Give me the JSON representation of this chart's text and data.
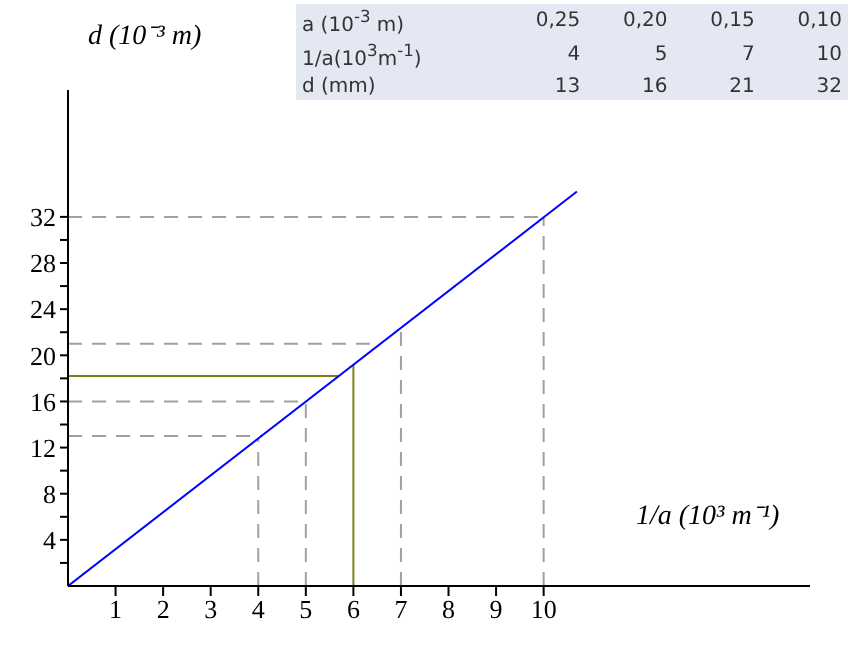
{
  "chart_data": {
    "type": "line",
    "xlabel": "1/a (10³ m⁻¹)",
    "ylabel": "d (10⁻³ m)",
    "x": [
      0,
      10.7
    ],
    "series": [
      {
        "color": "#0000ff",
        "values": [
          0,
          34.2
        ]
      }
    ],
    "xlim": [
      0,
      15.6
    ],
    "ylim": [
      0,
      43
    ],
    "xticks": [
      1,
      2,
      3,
      4,
      5,
      6,
      7,
      8,
      9,
      10
    ],
    "yticks": [
      {
        "value": 2,
        "label": null
      },
      4,
      {
        "value": 6,
        "label": null
      },
      8,
      {
        "value": 10,
        "label": null
      },
      12,
      {
        "value": 14,
        "label": null
      },
      16,
      {
        "value": 18,
        "label": null
      },
      20,
      {
        "value": 22,
        "label": null
      },
      24,
      {
        "value": 26,
        "label": null
      },
      28,
      {
        "value": 30,
        "label": null
      },
      32
    ],
    "ref_lines": [
      {
        "axis": "x",
        "value": 4,
        "color": "#a0a0a0",
        "line_style": "dashed"
      },
      {
        "axis": "y",
        "value": 13,
        "color": "#a0a0a0",
        "line_style": "dashed"
      },
      {
        "axis": "x",
        "value": 5,
        "color": "#a0a0a0",
        "line_style": "dashed"
      },
      {
        "axis": "y",
        "value": 16,
        "color": "#a0a0a0",
        "line_style": "dashed"
      },
      {
        "axis": "x",
        "value": 7,
        "color": "#a0a0a0",
        "line_style": "dashed"
      },
      {
        "axis": "y",
        "value": 21,
        "color": "#a0a0a0",
        "line_style": "dashed"
      },
      {
        "axis": "x",
        "value": 10,
        "color": "#a0a0a0",
        "line_style": "dashed"
      },
      {
        "axis": "y",
        "value": 32,
        "color": "#a0a0a0",
        "line_style": "dashed"
      },
      {
        "axis": "x",
        "value": 6,
        "color": "#808020",
        "line_style": "solid"
      },
      {
        "axis": "y",
        "value": 18.2,
        "color": "#808020",
        "line_style": "solid"
      }
    ],
    "annotations": [
      "a (10$^{-3}$ m)",
      "0,25",
      "0,20",
      "0,15",
      "0,10",
      "1/a(10$^{3}$m$^{-1}$)",
      "4",
      "5",
      "7",
      "10",
      "d (mm)",
      "13",
      "16",
      "21",
      "32"
    ]
  }
}
